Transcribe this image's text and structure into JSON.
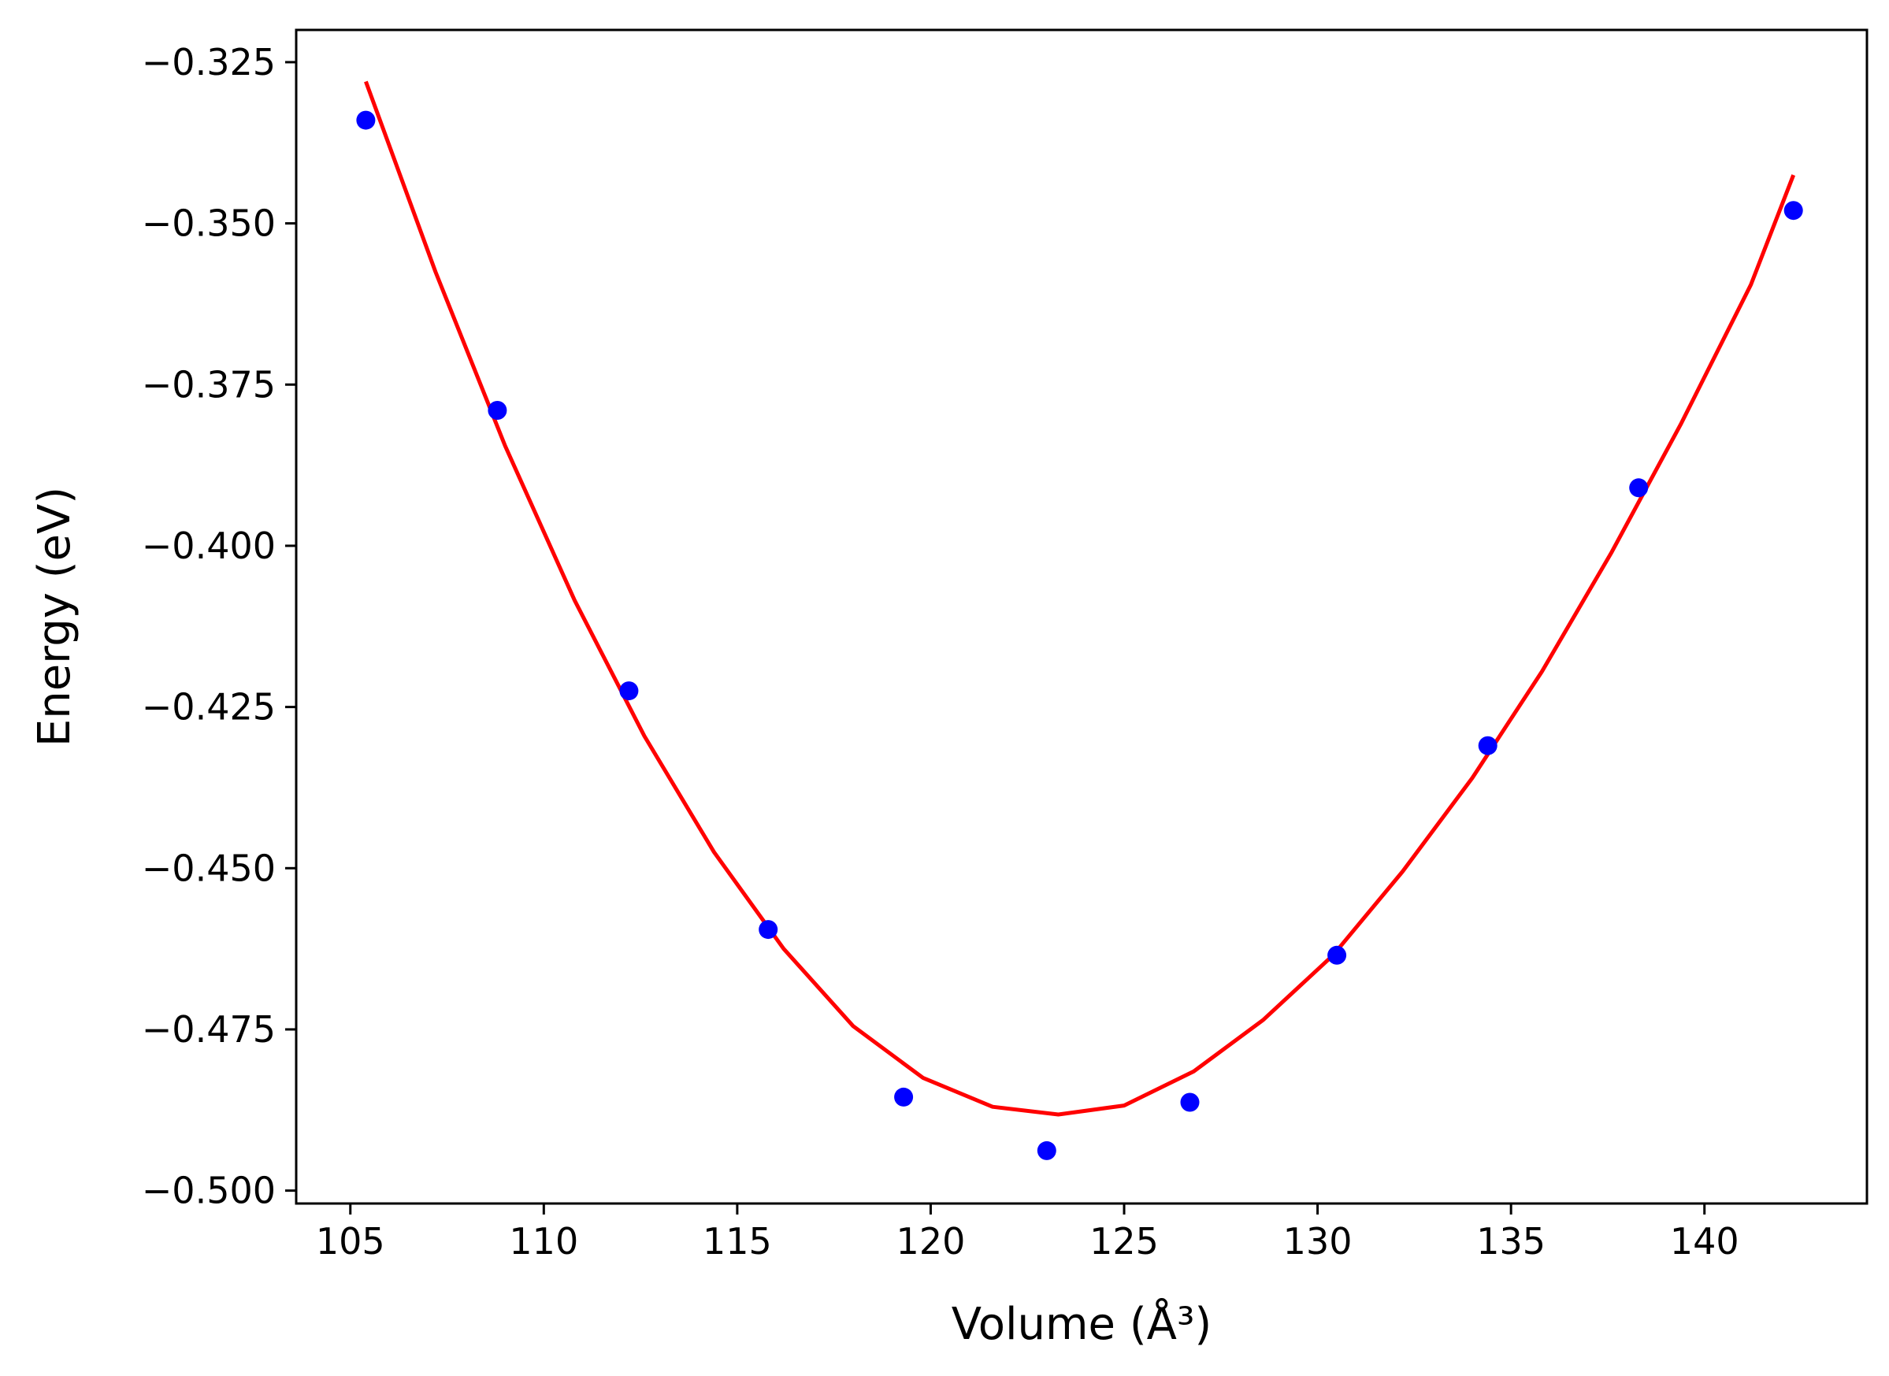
{
  "chart_data": {
    "type": "scatter",
    "title": "",
    "xlabel": "Volume (Å³)",
    "ylabel": "Energy (eV)",
    "xlim": [
      103.6,
      144.2
    ],
    "ylim": [
      -0.502,
      -0.32
    ],
    "xticks": [
      105,
      110,
      115,
      120,
      125,
      130,
      135,
      140
    ],
    "xtick_labels": [
      "105",
      "110",
      "115",
      "120",
      "125",
      "130",
      "135",
      "140"
    ],
    "yticks": [
      -0.325,
      -0.35,
      -0.375,
      -0.4,
      -0.425,
      -0.45,
      -0.475,
      -0.5
    ],
    "ytick_labels": [
      "−0.325",
      "−0.350",
      "−0.375",
      "−0.400",
      "−0.425",
      "−0.450",
      "−0.475",
      "−0.500"
    ],
    "grid": false,
    "legend": "none",
    "series": [
      {
        "kind": "points",
        "color": "#0000ff",
        "x": [
          105.4,
          108.8,
          112.2,
          115.8,
          119.3,
          123.0,
          126.7,
          130.5,
          134.4,
          138.3,
          142.3
        ],
        "y": [
          -0.334,
          -0.379,
          -0.4225,
          -0.4595,
          -0.4855,
          -0.4938,
          -0.4863,
          -0.4635,
          -0.431,
          -0.391,
          -0.348
        ]
      },
      {
        "kind": "fit-line",
        "color": "#ff0000",
        "x": [
          105.4,
          107.2,
          109.0,
          110.8,
          112.6,
          114.4,
          116.2,
          118.0,
          119.8,
          121.6,
          123.3,
          125.0,
          126.8,
          128.6,
          130.4,
          132.2,
          134.0,
          135.8,
          137.6,
          139.4,
          141.2,
          142.3
        ],
        "y": [
          -0.328,
          -0.3575,
          -0.3845,
          -0.4085,
          -0.4295,
          -0.4475,
          -0.4625,
          -0.4745,
          -0.4825,
          -0.487,
          -0.4882,
          -0.4868,
          -0.4815,
          -0.4735,
          -0.4635,
          -0.4505,
          -0.436,
          -0.4195,
          -0.401,
          -0.381,
          -0.3595,
          -0.3425
        ]
      }
    ]
  }
}
